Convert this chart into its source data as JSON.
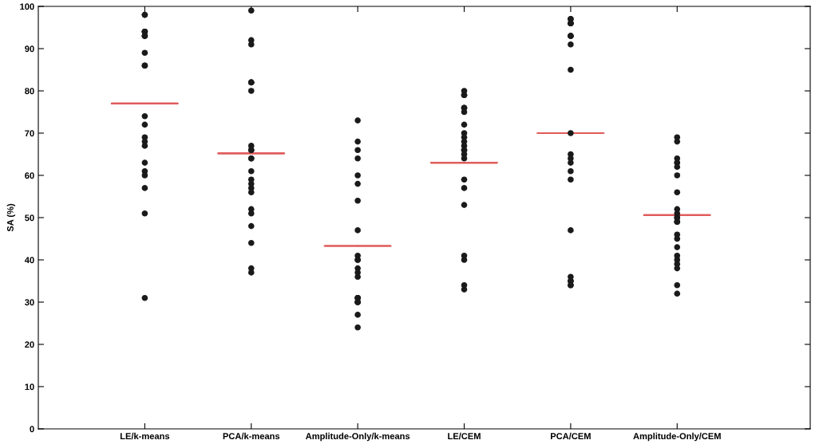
{
  "chart_data": {
    "type": "scatter",
    "ylabel": "SA (%)",
    "categories": [
      "LE/k-means",
      "PCA/k-means",
      "Amplitude-Only/k-means",
      "LE/CEM",
      "PCA/CEM",
      "Amplitude-Only/CEM"
    ],
    "ylim": [
      0,
      100
    ],
    "yticks": [
      0,
      10,
      20,
      30,
      40,
      50,
      60,
      70,
      80,
      90,
      100
    ],
    "grid": false,
    "series": [
      {
        "color": "#1a1a1a",
        "marker": "circle",
        "x": [
          "LE/k-means",
          "LE/k-means",
          "LE/k-means",
          "LE/k-means",
          "LE/k-means",
          "LE/k-means",
          "LE/k-means",
          "LE/k-means",
          "LE/k-means",
          "LE/k-means",
          "LE/k-means",
          "LE/k-means",
          "LE/k-means",
          "LE/k-means",
          "LE/k-means",
          "LE/k-means",
          "LE/k-means",
          "LE/k-means",
          "LE/k-means",
          "LE/k-means",
          "LE/k-means",
          "LE/k-means",
          "PCA/k-means",
          "PCA/k-means",
          "PCA/k-means",
          "PCA/k-means",
          "PCA/k-means",
          "PCA/k-means",
          "PCA/k-means",
          "PCA/k-means",
          "PCA/k-means",
          "PCA/k-means",
          "PCA/k-means",
          "PCA/k-means",
          "PCA/k-means",
          "PCA/k-means",
          "PCA/k-means",
          "PCA/k-means",
          "PCA/k-means",
          "PCA/k-means",
          "PCA/k-means",
          "PCA/k-means",
          "PCA/k-means",
          "PCA/k-means",
          "PCA/k-means",
          "Amplitude-Only/k-means",
          "Amplitude-Only/k-means",
          "Amplitude-Only/k-means",
          "Amplitude-Only/k-means",
          "Amplitude-Only/k-means",
          "Amplitude-Only/k-means",
          "Amplitude-Only/k-means",
          "Amplitude-Only/k-means",
          "Amplitude-Only/k-means",
          "Amplitude-Only/k-means",
          "Amplitude-Only/k-means",
          "Amplitude-Only/k-means",
          "Amplitude-Only/k-means",
          "Amplitude-Only/k-means",
          "Amplitude-Only/k-means",
          "Amplitude-Only/k-means",
          "Amplitude-Only/k-means",
          "Amplitude-Only/k-means",
          "Amplitude-Only/k-means",
          "Amplitude-Only/k-means",
          "Amplitude-Only/k-means",
          "Amplitude-Only/k-means",
          "LE/CEM",
          "LE/CEM",
          "LE/CEM",
          "LE/CEM",
          "LE/CEM",
          "LE/CEM",
          "LE/CEM",
          "LE/CEM",
          "LE/CEM",
          "LE/CEM",
          "LE/CEM",
          "LE/CEM",
          "LE/CEM",
          "LE/CEM",
          "LE/CEM",
          "LE/CEM",
          "LE/CEM",
          "LE/CEM",
          "LE/CEM",
          "LE/CEM",
          "LE/CEM",
          "LE/CEM",
          "PCA/CEM",
          "PCA/CEM",
          "PCA/CEM",
          "PCA/CEM",
          "PCA/CEM",
          "PCA/CEM",
          "PCA/CEM",
          "PCA/CEM",
          "PCA/CEM",
          "PCA/CEM",
          "PCA/CEM",
          "PCA/CEM",
          "PCA/CEM",
          "PCA/CEM",
          "PCA/CEM",
          "PCA/CEM",
          "PCA/CEM",
          "PCA/CEM",
          "PCA/CEM",
          "PCA/CEM",
          "PCA/CEM",
          "PCA/CEM",
          "Amplitude-Only/CEM",
          "Amplitude-Only/CEM",
          "Amplitude-Only/CEM",
          "Amplitude-Only/CEM",
          "Amplitude-Only/CEM",
          "Amplitude-Only/CEM",
          "Amplitude-Only/CEM",
          "Amplitude-Only/CEM",
          "Amplitude-Only/CEM",
          "Amplitude-Only/CEM",
          "Amplitude-Only/CEM",
          "Amplitude-Only/CEM",
          "Amplitude-Only/CEM",
          "Amplitude-Only/CEM",
          "Amplitude-Only/CEM",
          "Amplitude-Only/CEM",
          "Amplitude-Only/CEM",
          "Amplitude-Only/CEM",
          "Amplitude-Only/CEM",
          "Amplitude-Only/CEM",
          "Amplitude-Only/CEM",
          "Amplitude-Only/CEM",
          "Amplitude-Only/CEM"
        ],
        "values": [
          98,
          98,
          94,
          94,
          94,
          93,
          93,
          93,
          89,
          86,
          86,
          74,
          72,
          69,
          68,
          67,
          63,
          61,
          60,
          57,
          51,
          31,
          99,
          92,
          91,
          82,
          82,
          82,
          80,
          67,
          66,
          66,
          64,
          64,
          61,
          59,
          58,
          57,
          56,
          52,
          51,
          48,
          44,
          38,
          37,
          73,
          68,
          66,
          64,
          60,
          58,
          54,
          47,
          41,
          40,
          40,
          38,
          37,
          36,
          31,
          31,
          31,
          30,
          30,
          30,
          27,
          24,
          80,
          79,
          79,
          76,
          76,
          75,
          72,
          70,
          69,
          68,
          67,
          66,
          66,
          65,
          64,
          59,
          57,
          53,
          41,
          40,
          34,
          33,
          97,
          97,
          96,
          96,
          96,
          93,
          93,
          93,
          91,
          85,
          70,
          65,
          64,
          63,
          61,
          59,
          47,
          36,
          35,
          35,
          34,
          34,
          69,
          68,
          64,
          63,
          63,
          62,
          60,
          56,
          52,
          51,
          50,
          50,
          49,
          49,
          46,
          45,
          43,
          41,
          40,
          39,
          38,
          34,
          32
        ]
      },
      {
        "type": "box",
        "color": "#e05a5a",
        "boxes": [
          {
            "low": 77,
            "q1": 77,
            "median": 77,
            "q3": 77,
            "high": 77
          },
          {
            "low": 65.2,
            "q1": 65.2,
            "median": 65.2,
            "q3": 65.2,
            "high": 65.2
          },
          {
            "low": 43.3,
            "q1": 43.3,
            "median": 43.3,
            "q3": 43.3,
            "high": 43.3
          },
          {
            "low": 63,
            "q1": 63,
            "median": 63,
            "q3": 63,
            "high": 63
          },
          {
            "low": 70,
            "q1": 70,
            "median": 70,
            "q3": 70,
            "high": 70
          },
          {
            "low": 50.6,
            "q1": 50.6,
            "median": 50.6,
            "q3": 50.6,
            "high": 50.6
          }
        ]
      }
    ]
  }
}
